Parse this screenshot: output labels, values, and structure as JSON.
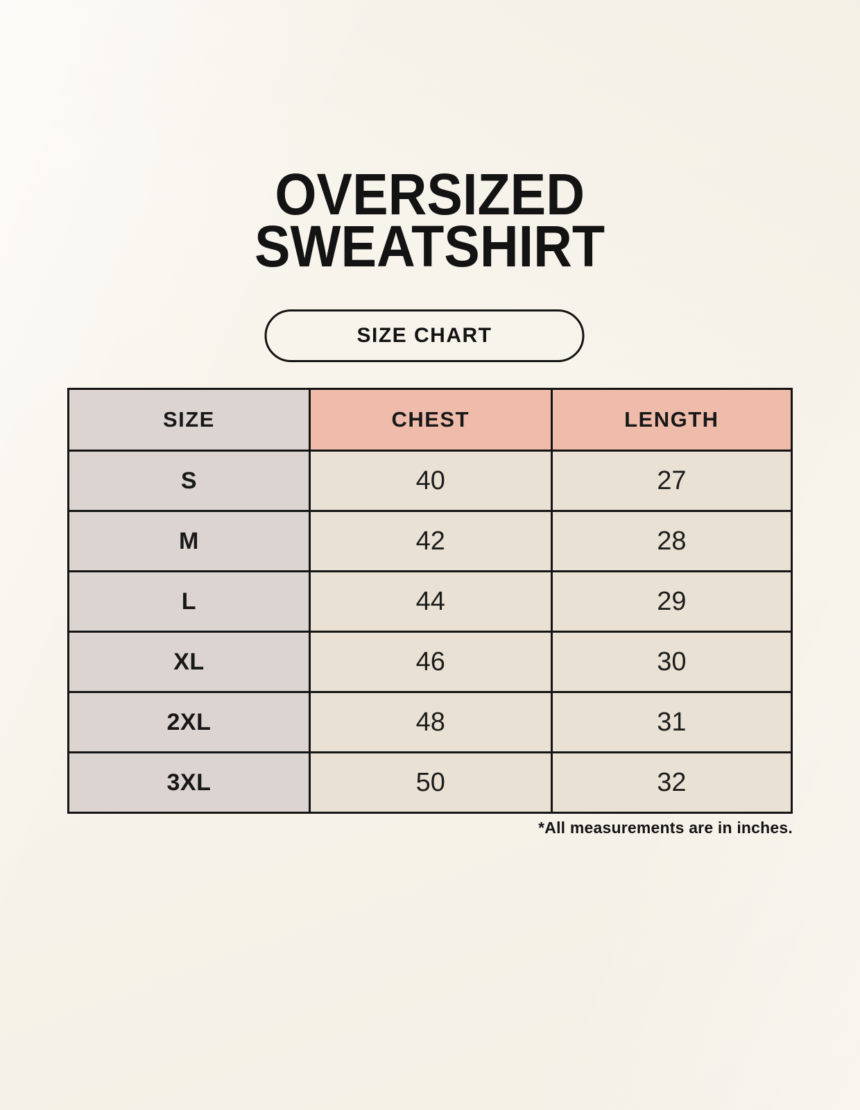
{
  "header": {
    "title_line1": "OVERSIZED",
    "title_line2": "SWEATSHIRT",
    "badge_label": "SIZE CHART"
  },
  "table": {
    "headers": [
      "SIZE",
      "CHEST",
      "LENGTH"
    ],
    "rows": [
      {
        "size": "S",
        "chest": "40",
        "length": "27"
      },
      {
        "size": "M",
        "chest": "42",
        "length": "28"
      },
      {
        "size": "L",
        "chest": "44",
        "length": "29"
      },
      {
        "size": "XL",
        "chest": "46",
        "length": "30"
      },
      {
        "size": "2XL",
        "chest": "48",
        "length": "31"
      },
      {
        "size": "3XL",
        "chest": "50",
        "length": "32"
      }
    ]
  },
  "footnote": "*All measurements are in inches.",
  "colors": {
    "background": "#F7F3EA",
    "header_accent": "#EFBCAC",
    "size_column": "#DBD4D0",
    "value_cell": "#E9E2D4",
    "border": "#141414",
    "text": "#141414"
  },
  "chart_data": {
    "type": "table",
    "title": "OVERSIZED SWEATSHIRT SIZE CHART",
    "columns": [
      "SIZE",
      "CHEST",
      "LENGTH"
    ],
    "rows": [
      [
        "S",
        40,
        27
      ],
      [
        "M",
        42,
        28
      ],
      [
        "L",
        44,
        29
      ],
      [
        "XL",
        46,
        30
      ],
      [
        "2XL",
        48,
        31
      ],
      [
        "3XL",
        50,
        32
      ]
    ],
    "units": "inches",
    "note": "*All measurements are in inches."
  }
}
